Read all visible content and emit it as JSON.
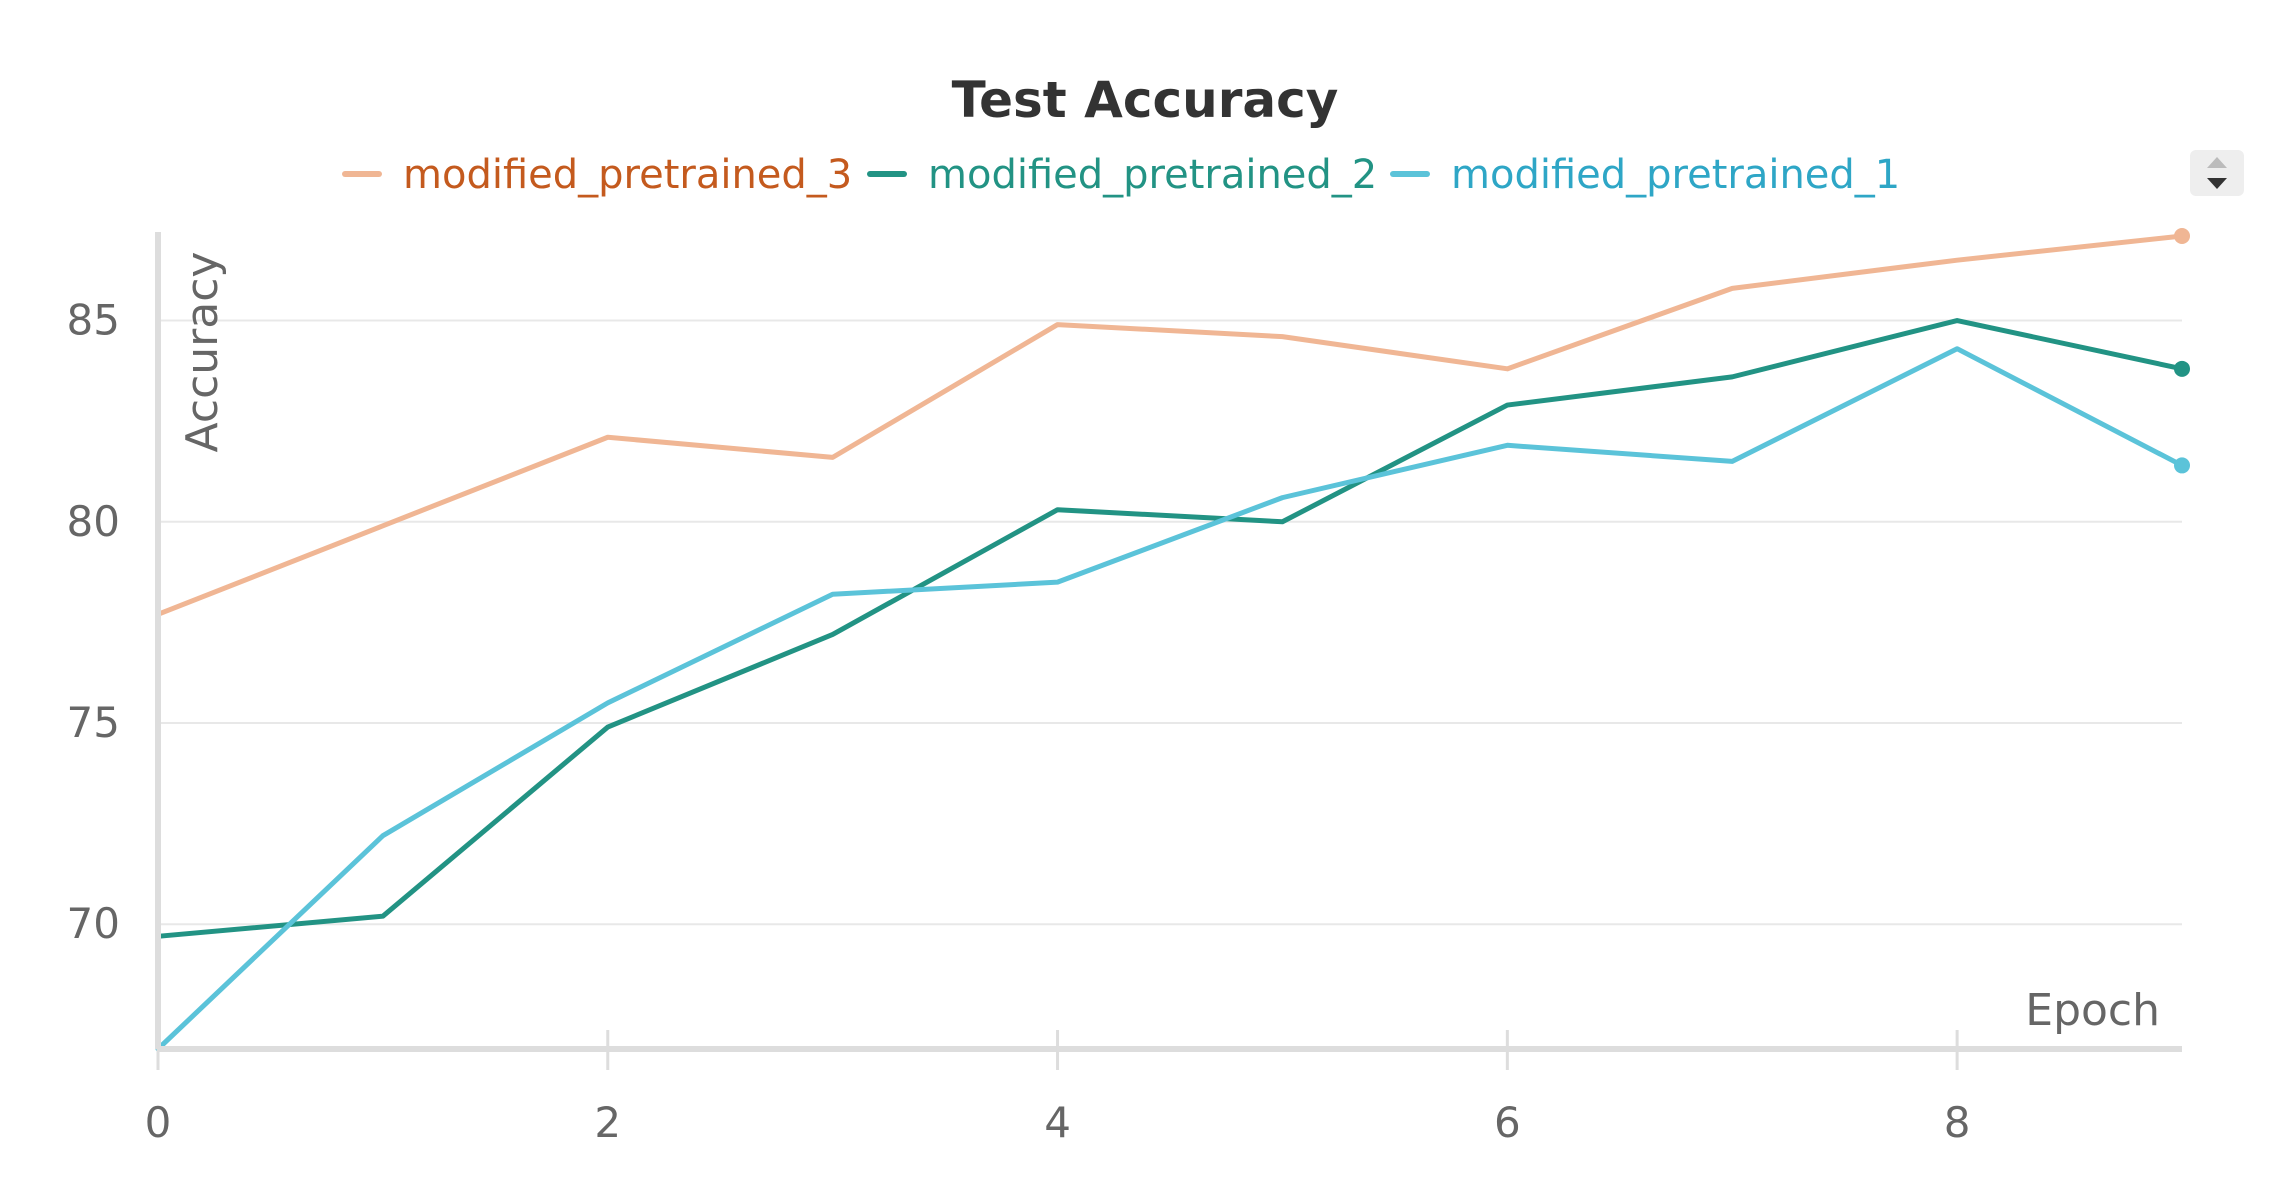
{
  "chart_data": {
    "type": "line",
    "title": "Test Accuracy",
    "xlabel": "Epoch",
    "ylabel": "Accuracy",
    "x": [
      0,
      1,
      2,
      3,
      4,
      5,
      6,
      7,
      8,
      9
    ],
    "xlim": [
      0,
      9
    ],
    "ylim": [
      66.9,
      87.2
    ],
    "xticks": [
      0,
      2,
      4,
      6,
      8
    ],
    "yticks": [
      70,
      75,
      80,
      85
    ],
    "grid": true,
    "legend_position": "top",
    "series": [
      {
        "name": "modified_pretrained_3",
        "color": "#f0b694",
        "legend_text_color": "#c45a1e",
        "values": [
          77.7,
          79.9,
          82.1,
          81.6,
          84.9,
          84.6,
          83.8,
          85.8,
          86.5,
          87.1
        ]
      },
      {
        "name": "modified_pretrained_2",
        "color": "#229384",
        "legend_text_color": "#229384",
        "values": [
          69.7,
          70.2,
          74.9,
          77.2,
          80.3,
          80.0,
          82.9,
          83.6,
          85.0,
          83.8
        ]
      },
      {
        "name": "modified_pretrained_1",
        "color": "#5bc3d9",
        "legend_text_color": "#2ea6c6",
        "values": [
          66.9,
          72.2,
          75.5,
          78.2,
          78.5,
          80.6,
          81.9,
          81.5,
          84.3,
          81.4
        ]
      }
    ]
  }
}
